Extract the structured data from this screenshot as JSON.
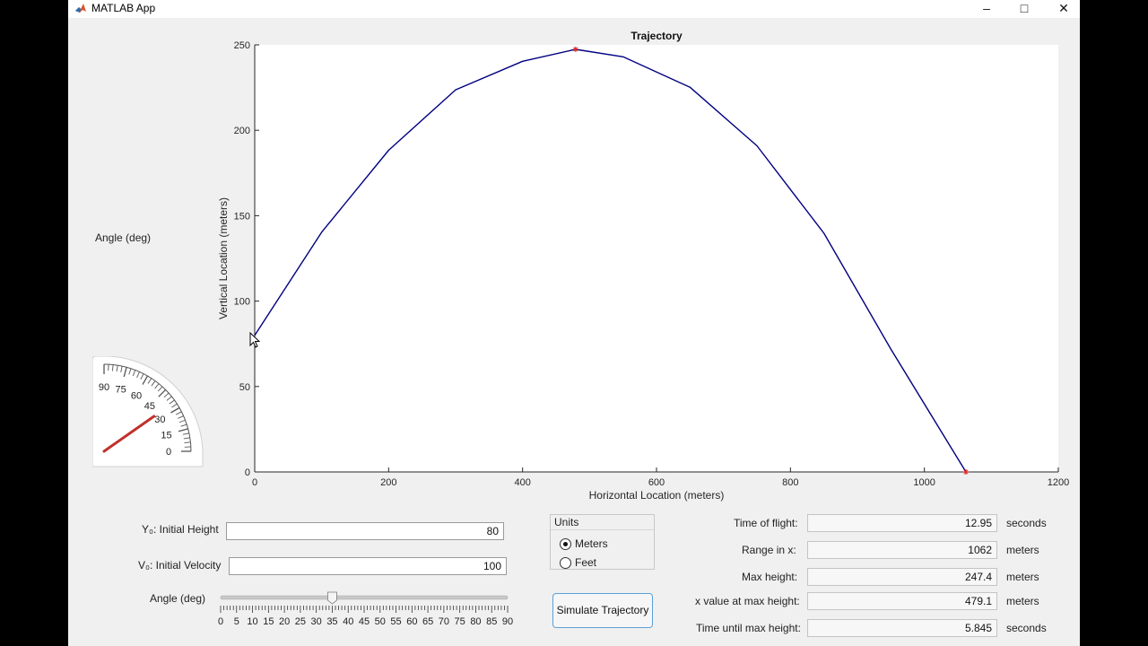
{
  "window": {
    "title": "MATLAB App",
    "minimize_glyph": "–",
    "maximize_glyph": "□",
    "close_glyph": "✕"
  },
  "gauge": {
    "label": "Angle (deg)",
    "ticks": [
      "0",
      "15",
      "30",
      "45",
      "60",
      "75",
      "90"
    ],
    "needle_value": 35,
    "needle_color": "#c0302b"
  },
  "inputs": {
    "height_label": "Y₀: Initial Height",
    "height_value": "80",
    "velocity_label": "V₀: Initial Velocity",
    "velocity_value": "100",
    "angle_label": "Angle (deg)",
    "angle_value": 35,
    "angle_ticks": [
      "0",
      "5",
      "10",
      "15",
      "20",
      "25",
      "30",
      "35",
      "40",
      "45",
      "50",
      "55",
      "60",
      "65",
      "70",
      "75",
      "80",
      "85",
      "90"
    ]
  },
  "units": {
    "title": "Units",
    "options": [
      {
        "label": "Meters",
        "selected": true
      },
      {
        "label": "Feet",
        "selected": false
      }
    ]
  },
  "simulate_button": "Simulate Trajectory",
  "outputs": [
    {
      "label": "Time of flight:",
      "value": "12.95",
      "unit": "seconds"
    },
    {
      "label": "Range in x:",
      "value": "1062",
      "unit": "meters"
    },
    {
      "label": "Max height:",
      "value": "247.4",
      "unit": "meters"
    },
    {
      "label": "x value at max height:",
      "value": "479.1",
      "unit": "meters"
    },
    {
      "label": "Time until max height:",
      "value": "5.845",
      "unit": "seconds"
    }
  ],
  "chart_data": {
    "type": "line",
    "title": "Trajectory",
    "xlabel": "Horizontal Location (meters)",
    "ylabel": "Vertical Location (meters)",
    "xlim": [
      0,
      1200
    ],
    "ylim": [
      0,
      250
    ],
    "xticks": [
      0,
      200,
      400,
      600,
      800,
      1000,
      1200
    ],
    "yticks": [
      0,
      50,
      100,
      150,
      200,
      250
    ],
    "grid": false,
    "line_color": "#000080",
    "marker_color": "#e02020",
    "series": [
      {
        "x": [
          0,
          100,
          200,
          300,
          400,
          479.1,
          550,
          650,
          750,
          850,
          950,
          1062
        ],
        "y": [
          80,
          140.4,
          188.3,
          223.7,
          240.4,
          247.4,
          243.0,
          225.2,
          190.9,
          139.7,
          71.9,
          0
        ]
      }
    ],
    "markers": [
      {
        "x": 479.1,
        "y": 247.4
      },
      {
        "x": 1062,
        "y": 0
      }
    ]
  }
}
